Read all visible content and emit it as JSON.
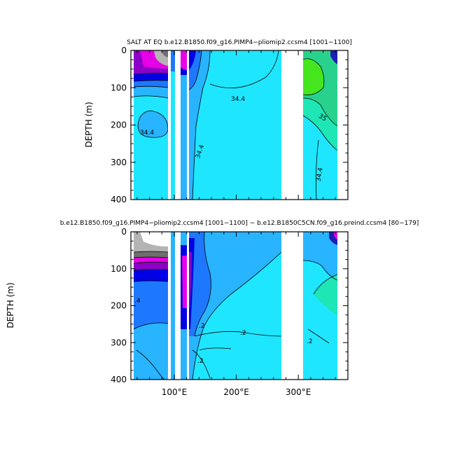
{
  "colors": {
    "cyan": "#1ee6ff",
    "lightblue": "#28b4ff",
    "medblue": "#1e78ff",
    "blue": "#0000e6",
    "darkblue": "#1e1eb4",
    "purple": "#8c00c8",
    "magenta": "#e600e6",
    "darkgray": "#6e6e6e",
    "lightgray": "#b4b4b4",
    "green": "#46e61e",
    "teal": "#1ee6b4",
    "seagreen": "#28d28c"
  },
  "chart_data": [
    {
      "type": "contour",
      "title": "SALT AT EQ  b.e12.B1850.f09_g16.PIMP4−pliomip2.ccsm4  [1001−1100]",
      "ylabel": "DEPTH (m)",
      "xlabel": "",
      "xlim": [
        30,
        380
      ],
      "ylim": [
        400,
        0
      ],
      "y_ticks": [
        "0",
        "100",
        "200",
        "300",
        "400"
      ],
      "x_ticks": [],
      "contour_labels": [
        "34.4",
        "34.4",
        "34.4",
        "35",
        "34.4"
      ]
    },
    {
      "type": "contour",
      "title": "b.e12.B1850.f09_g16.PIMP4−pliomip2.ccsm4  [1001−1100]  −  b.e12.B1850C5CN.f09_g16.preind.ccsm4  [80−179]",
      "ylabel": "DEPTH (m)",
      "xlabel": "",
      "xlim": [
        30,
        380
      ],
      "ylim": [
        400,
        0
      ],
      "y_ticks": [
        "0",
        "100",
        "200",
        "300",
        "400"
      ],
      "x_ticks": [
        "100°E",
        "200°E",
        "300°E"
      ],
      "x_tick_values": [
        100,
        200,
        300
      ],
      "contour_labels": [
        ".4",
        ".2",
        ".2",
        ".2",
        ".2"
      ]
    }
  ]
}
